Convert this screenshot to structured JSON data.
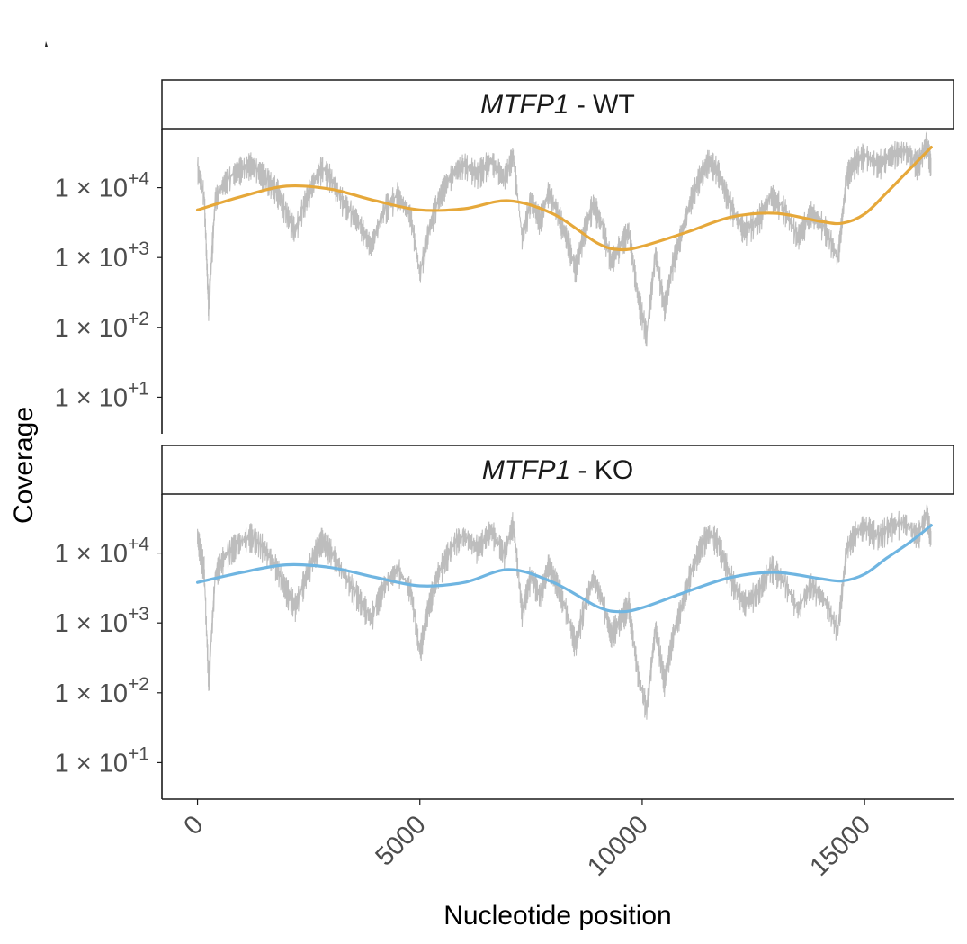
{
  "chart_data": {
    "type": "line",
    "xlabel": "Nucleotide position",
    "ylabel": "Coverage",
    "y_scale": "log10",
    "xlim": [
      -800,
      17000
    ],
    "ylim": [
      3,
      70000
    ],
    "x_ticks": [
      0,
      5000,
      10000,
      15000
    ],
    "x_tick_labels": [
      "0",
      "5000",
      "10000",
      "15000"
    ],
    "y_ticks": [
      10,
      100,
      1000,
      10000
    ],
    "y_tick_labels": [
      {
        "base": "1 × 10",
        "exp": "+1"
      },
      {
        "base": "1 × 10",
        "exp": "+2"
      },
      {
        "base": "1 × 10",
        "exp": "+3"
      },
      {
        "base": "1 × 10",
        "exp": "+4"
      }
    ],
    "colors": {
      "raw": "#bdbdbd",
      "wt_smooth": "#e6a83a",
      "ko_smooth": "#6fb5e1"
    },
    "panels": [
      {
        "strip_label": {
          "gene": "MTFP1",
          "condition": " - WT"
        },
        "smooth_x": [
          0,
          1000,
          2000,
          3000,
          4000,
          5000,
          6000,
          7000,
          8000,
          9000,
          9500,
          10000,
          11000,
          12000,
          13000,
          14000,
          14500,
          15000,
          15500,
          16000,
          16500
        ],
        "smooth_y": [
          4800,
          7500,
          10500,
          9500,
          6500,
          4800,
          5000,
          6500,
          4200,
          1600,
          1300,
          1450,
          2300,
          3800,
          4300,
          3300,
          3100,
          4200,
          8500,
          18000,
          38000
        ],
        "raw_x": [
          0,
          150,
          250,
          400,
          600,
          900,
          1200,
          1500,
          1800,
          2000,
          2200,
          2400,
          2600,
          2800,
          3000,
          3300,
          3600,
          3900,
          4200,
          4500,
          4800,
          5000,
          5200,
          5400,
          5600,
          5800,
          6000,
          6300,
          6600,
          6900,
          7100,
          7300,
          7500,
          7700,
          7900,
          8100,
          8300,
          8500,
          8700,
          8900,
          9100,
          9300,
          9500,
          9700,
          9900,
          10100,
          10300,
          10500,
          10700,
          10900,
          11100,
          11300,
          11500,
          11700,
          11900,
          12100,
          12300,
          12600,
          12900,
          13200,
          13500,
          13800,
          14100,
          14400,
          14600,
          14800,
          15000,
          15300,
          15600,
          15900,
          16200,
          16400,
          16500
        ],
        "raw_y": [
          20000,
          8000,
          200,
          7000,
          12000,
          18000,
          22000,
          15000,
          9000,
          4500,
          2500,
          6000,
          12000,
          20000,
          14000,
          6000,
          3500,
          1500,
          5000,
          8000,
          4000,
          600,
          2500,
          6500,
          12000,
          18000,
          22000,
          16000,
          25000,
          14000,
          30000,
          2000,
          7000,
          3500,
          9000,
          4500,
          2000,
          700,
          2500,
          6000,
          3000,
          900,
          1500,
          2500,
          300,
          80,
          1200,
          200,
          900,
          2500,
          7000,
          15000,
          25000,
          18000,
          8000,
          4000,
          2500,
          3500,
          8000,
          5000,
          2000,
          4500,
          2800,
          1000,
          15000,
          25000,
          30000,
          22000,
          30000,
          35000,
          22000,
          45000,
          20000
        ]
      },
      {
        "strip_label": {
          "gene": "MTFP1",
          "condition": " - KO"
        },
        "smooth_x": [
          0,
          1000,
          2000,
          3000,
          4000,
          5000,
          6000,
          7000,
          8000,
          9000,
          9500,
          10000,
          11000,
          12000,
          13000,
          14000,
          14500,
          15000,
          15500,
          16000,
          16500
        ],
        "smooth_y": [
          3800,
          5300,
          6800,
          6200,
          4500,
          3400,
          3800,
          5800,
          3800,
          1700,
          1450,
          1650,
          2800,
          4500,
          5300,
          4300,
          4000,
          5000,
          8500,
          14000,
          25000
        ],
        "raw_x": [
          0,
          150,
          250,
          400,
          600,
          900,
          1200,
          1500,
          1800,
          2000,
          2200,
          2400,
          2600,
          2800,
          3000,
          3300,
          3600,
          3900,
          4200,
          4500,
          4800,
          5000,
          5200,
          5400,
          5600,
          5800,
          6000,
          6300,
          6600,
          6900,
          7100,
          7300,
          7500,
          7700,
          7900,
          8100,
          8300,
          8500,
          8700,
          8900,
          9100,
          9300,
          9500,
          9700,
          9900,
          10100,
          10300,
          10500,
          10700,
          10900,
          11100,
          11300,
          11500,
          11700,
          11900,
          12100,
          12300,
          12600,
          12900,
          13200,
          13500,
          13800,
          14100,
          14400,
          14600,
          14800,
          15000,
          15300,
          15600,
          15900,
          16200,
          16400,
          16500
        ],
        "raw_y": [
          18000,
          6000,
          150,
          5000,
          9000,
          14000,
          18000,
          12000,
          6000,
          3000,
          1800,
          4000,
          9000,
          16000,
          11000,
          5000,
          2500,
          1200,
          3500,
          6000,
          3000,
          400,
          1800,
          5000,
          9000,
          15000,
          18000,
          12000,
          22000,
          10000,
          28000,
          1500,
          5000,
          2500,
          7000,
          3500,
          1500,
          500,
          1800,
          4500,
          2300,
          700,
          1100,
          1900,
          200,
          60,
          900,
          150,
          700,
          1900,
          5500,
          12000,
          20000,
          15000,
          6500,
          3200,
          2000,
          2800,
          6500,
          4000,
          1600,
          3600,
          2200,
          800,
          12000,
          20000,
          25000,
          18000,
          25000,
          28000,
          18000,
          38000,
          16000
        ]
      }
    ]
  }
}
